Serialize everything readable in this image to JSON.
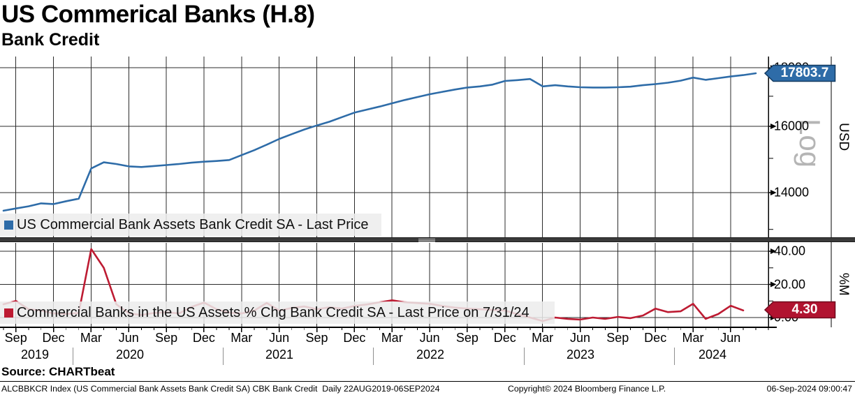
{
  "header": {
    "title": "US Commerical Banks (H.8)",
    "subtitle": "Bank Credit"
  },
  "top_panel": {
    "legend": "US Commercial Bank Assets Bank Credit SA - Last Price",
    "last_price_flag": "17803.7",
    "axis_ticks": [
      "18000",
      "16000",
      "14000"
    ],
    "axis_unit": "USD",
    "scale_watermark": "Log"
  },
  "bottom_panel": {
    "legend": "Commercial Banks in the US Assets % Chg Bank Credit SA - Last Price on 7/31/24",
    "last_price_flag": "4.30",
    "axis_ticks": [
      "40.00",
      "20.00",
      "0.00"
    ],
    "axis_unit": "%M"
  },
  "xaxis": {
    "months": [
      "Sep",
      "Dec",
      "Mar",
      "Jun",
      "Sep",
      "Dec",
      "Mar",
      "Jun",
      "Sep",
      "Dec",
      "Mar",
      "Jun",
      "Sep",
      "Dec",
      "Mar",
      "Jun",
      "Sep",
      "Dec",
      "Mar",
      "Jun"
    ],
    "years": [
      "2019",
      "2020",
      "2021",
      "2022",
      "2023",
      "2024"
    ]
  },
  "footer": {
    "source": "Source: CHARTbeat",
    "ticker_line": "ALCBBKCR Index (US Commercial Bank Assets Bank Credit SA) CBK Bank Credit  Daily 22AUG2019-06SEP2024",
    "copyright": "Copyright© 2024 Bloomberg Finance L.P.",
    "datetime": "06-Sep-2024 09:00:47"
  },
  "colors": {
    "blue_line": "#2e6ca8",
    "blue_flag": "#2e6ca8",
    "blue_flag_border": "#123a61",
    "red_line": "#bd1b32",
    "red_flag": "#b11330",
    "red_flag_border": "#70091d",
    "legend_bg": "#ececec",
    "watermark_gray": "#b5b5b5",
    "splitter_gray": "#3a3a3a"
  },
  "chart_data": [
    {
      "type": "line",
      "name": "US Commercial Bank Assets Bank Credit SA - Last Price",
      "unit": "USD (billions)",
      "scale": "log",
      "start": "2019-08",
      "frequency": "monthly",
      "ylim": [
        12800,
        18300
      ],
      "axis_tick_values": [
        18000,
        16000,
        14000
      ],
      "last_price": 17803.7,
      "values": [
        13500,
        13560,
        13620,
        13700,
        13680,
        13760,
        13830,
        14700,
        14880,
        14830,
        14760,
        14740,
        14770,
        14800,
        14830,
        14870,
        14900,
        14920,
        14950,
        15100,
        15250,
        15420,
        15600,
        15750,
        15900,
        16030,
        16150,
        16300,
        16450,
        16550,
        16650,
        16760,
        16870,
        16970,
        17070,
        17150,
        17230,
        17300,
        17340,
        17400,
        17530,
        17560,
        17600,
        17340,
        17380,
        17340,
        17310,
        17300,
        17300,
        17310,
        17330,
        17380,
        17420,
        17470,
        17540,
        17650,
        17570,
        17630,
        17690,
        17740,
        17803.7
      ]
    },
    {
      "type": "line",
      "name": "Commercial Banks in the US Assets % Chg Bank Credit SA - Last Price on 7/31/24",
      "unit": "%M",
      "scale": "linear",
      "start": "2019-08",
      "frequency": "monthly",
      "ylim": [
        -5,
        45
      ],
      "axis_tick_values": [
        40,
        20,
        0
      ],
      "last_price": 4.3,
      "values": [
        8.0,
        10.0,
        5.0,
        4.2,
        2.5,
        2.2,
        2.8,
        41.3,
        30.0,
        8.0,
        2.5,
        1.5,
        2.8,
        3.2,
        2.5,
        6.5,
        9.0,
        5.0,
        3.0,
        2.5,
        4.2,
        8.8,
        4.2,
        5.8,
        6.7,
        5.0,
        6.2,
        5.4,
        7.0,
        7.9,
        9.2,
        10.4,
        9.2,
        8.75,
        8.3,
        7.0,
        6.0,
        5.4,
        5.0,
        4.6,
        4.2,
        2.0,
        0.0,
        -2.1,
        0.0,
        -0.8,
        -1.2,
        0.0,
        -0.8,
        0.4,
        -0.4,
        1.2,
        5.4,
        3.3,
        3.75,
        8.3,
        -0.8,
        2.1,
        7.1,
        4.3
      ]
    }
  ]
}
